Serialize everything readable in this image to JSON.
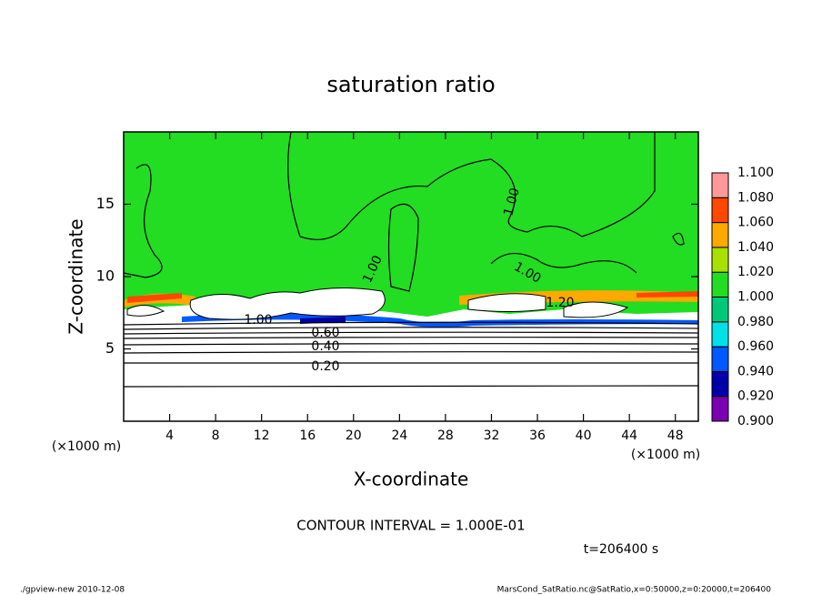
{
  "chart_data": {
    "type": "contour",
    "title": "saturation ratio",
    "x_label": "X-coordinate",
    "y_label": "Z-coordinate",
    "x_unit": "(×1000 m)",
    "y_unit": "(×1000 m)",
    "xlim": [
      0,
      50
    ],
    "xticks": [
      4,
      8,
      12,
      16,
      20,
      24,
      28,
      32,
      36,
      40,
      44,
      48
    ],
    "ylim": [
      0,
      20
    ],
    "yticks": [
      5,
      10,
      15
    ],
    "colorbar": {
      "levels": [
        {
          "value": 0.9,
          "label": "0.900"
        },
        {
          "value": 0.92,
          "label": "0.920"
        },
        {
          "value": 0.94,
          "label": "0.940"
        },
        {
          "value": 0.96,
          "label": "0.960"
        },
        {
          "value": 0.98,
          "label": "0.980"
        },
        {
          "value": 1,
          "label": "1.000"
        },
        {
          "value": 1.02,
          "label": "1.020"
        },
        {
          "value": 1.04,
          "label": "1.040"
        },
        {
          "value": 1.06,
          "label": "1.060"
        },
        {
          "value": 1.08,
          "label": "1.080"
        },
        {
          "value": 1.1,
          "label": "1.100"
        }
      ],
      "colors": [
        "#7a00b0",
        "#0000a8",
        "#0058ff",
        "#00e0e8",
        "#00c878",
        "#22dd22",
        "#a8e000",
        "#ffa800",
        "#ff4800",
        "#ff9898"
      ]
    },
    "contour_labels": [
      {
        "value": 1,
        "label": "1.00"
      },
      {
        "value": 1,
        "label": "1.00"
      },
      {
        "value": 1,
        "label": "1.00"
      },
      {
        "value": 1.2,
        "label": "1.20"
      },
      {
        "value": 1,
        "label": "1.00"
      },
      {
        "value": 0.6,
        "label": "0.60"
      },
      {
        "value": 0.4,
        "label": "0.40"
      },
      {
        "value": 0.2,
        "label": "0.20"
      }
    ],
    "annotation": "CONTOUR INTERVAL = 1.000E-01",
    "time_label": "t=206400 s",
    "footer_left": "./gpview-new   2010-12-08",
    "footer_right": "MarsCond_SatRatio.nc@SatRatio,x=0:50000,z=0:20000,t=206400"
  }
}
